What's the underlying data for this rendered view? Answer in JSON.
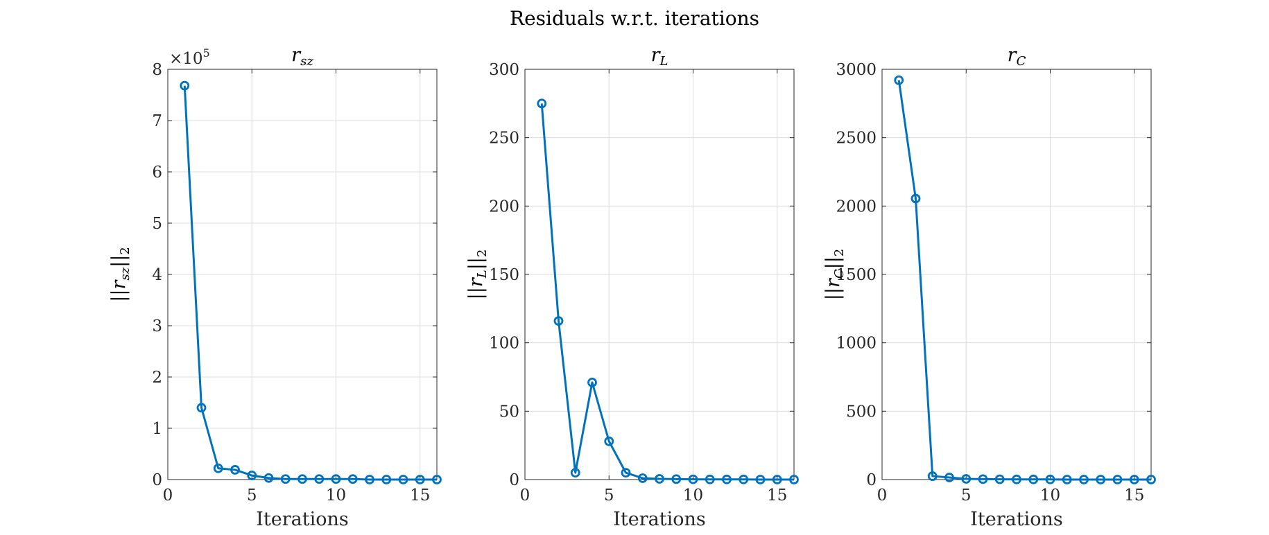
{
  "suptitle": "Residuals w.r.t. iterations",
  "chart_data": [
    {
      "type": "line",
      "title": "r_sz",
      "title_main": "r",
      "title_sub": "sz",
      "xlabel": "Iterations",
      "ylabel_main": "||r",
      "ylabel_sub": "sz",
      "ylabel_tail": "||",
      "ylabel_tail_sub": "2",
      "exponent_label": "×10",
      "exponent_power": "5",
      "xlim": [
        0,
        16
      ],
      "ylim": [
        0,
        8
      ],
      "xticks": [
        0,
        5,
        10,
        15
      ],
      "yticks": [
        0,
        1,
        2,
        3,
        4,
        5,
        6,
        7,
        8
      ],
      "grid": true,
      "x": [
        1,
        2,
        3,
        4,
        5,
        6,
        7,
        8,
        9,
        10,
        11,
        12,
        13,
        14,
        15,
        16
      ],
      "y": [
        7.68,
        1.4,
        0.22,
        0.19,
        0.08,
        0.03,
        0.01,
        0.01,
        0.01,
        0.01,
        0.01,
        0.0,
        0.0,
        0.0,
        0.0,
        0.0
      ]
    },
    {
      "type": "line",
      "title": "r_L",
      "title_main": "r",
      "title_sub": "L",
      "xlabel": "Iterations",
      "ylabel_main": "||r",
      "ylabel_sub": "L",
      "ylabel_tail": "||",
      "ylabel_tail_sub": "2",
      "xlim": [
        0,
        16
      ],
      "ylim": [
        0,
        300
      ],
      "xticks": [
        0,
        5,
        10,
        15
      ],
      "yticks": [
        0,
        50,
        100,
        150,
        200,
        250,
        300
      ],
      "grid": true,
      "x": [
        1,
        2,
        3,
        4,
        5,
        6,
        7,
        8,
        9,
        10,
        11,
        12,
        13,
        14,
        15,
        16
      ],
      "y": [
        275,
        116,
        5,
        71,
        28,
        5,
        1,
        0.5,
        0.3,
        0.2,
        0.1,
        0.1,
        0.1,
        0.0,
        0.0,
        0.0
      ]
    },
    {
      "type": "line",
      "title": "r_C",
      "title_main": "r",
      "title_sub": "C",
      "xlabel": "Iterations",
      "ylabel_main": "||r",
      "ylabel_sub": "C",
      "ylabel_tail": "||",
      "ylabel_tail_sub": "2",
      "xlim": [
        0,
        16
      ],
      "ylim": [
        0,
        3000
      ],
      "xticks": [
        0,
        5,
        10,
        15
      ],
      "yticks": [
        0,
        500,
        1000,
        1500,
        2000,
        2500,
        3000
      ],
      "grid": true,
      "x": [
        1,
        2,
        3,
        4,
        5,
        6,
        7,
        8,
        9,
        10,
        11,
        12,
        13,
        14,
        15,
        16
      ],
      "y": [
        2920,
        2055,
        25,
        15,
        5,
        3,
        2,
        1,
        1,
        1,
        0,
        0,
        0,
        0,
        0,
        0
      ]
    }
  ]
}
